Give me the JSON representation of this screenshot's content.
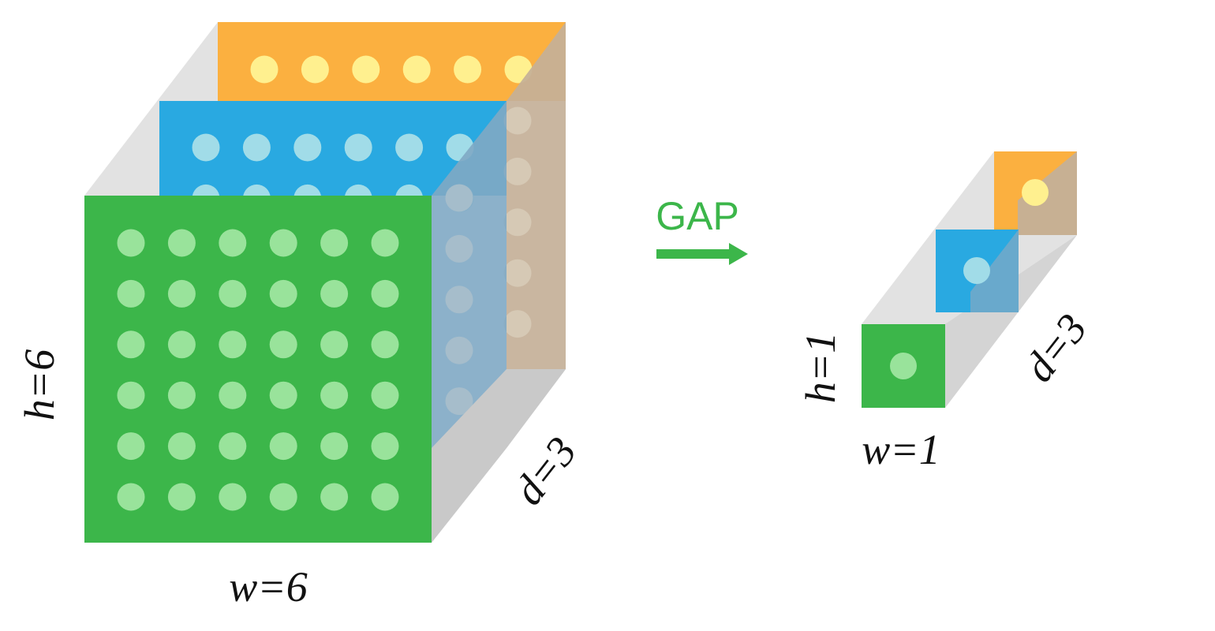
{
  "input_tensor": {
    "height_label": "h=6",
    "width_label": "w=6",
    "depth_label": "d=3",
    "grid_rows": 6,
    "grid_cols": 6
  },
  "operation": {
    "label": "GAP"
  },
  "output_tensor": {
    "height_label": "h=1",
    "width_label": "w=1",
    "depth_label": "d=3"
  },
  "colors": {
    "channel_front": "#3CB64A",
    "channel_middle": "#29A9E1",
    "channel_back": "#FBB040",
    "dot_front": "#99E39B",
    "dot_middle": "#A1DCE8",
    "dot_back": "#FFF08F",
    "side_translucent": "#7FA9C4",
    "side_back": "#C4B098",
    "shadow_face": "#C9C9C9",
    "shadow_light": "#E2E2E2",
    "accent": "#3CB64A"
  }
}
